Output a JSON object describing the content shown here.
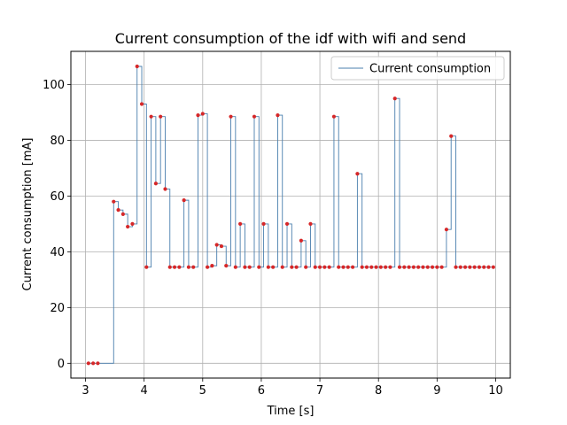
{
  "chart_data": {
    "type": "line",
    "title": "Current consumption of the idf with wifi and send",
    "xlabel": "Time [s]",
    "ylabel": "Current consumption [mA]",
    "xlim": [
      2.75,
      10.25
    ],
    "ylim": [
      -5.3,
      111.9
    ],
    "x_ticks": [
      3,
      4,
      5,
      6,
      7,
      8,
      9,
      10
    ],
    "y_ticks": [
      0,
      20,
      40,
      60,
      80,
      100
    ],
    "x_tick_labels": [
      "3",
      "4",
      "5",
      "6",
      "7",
      "8",
      "9",
      "10"
    ],
    "y_tick_labels": [
      "0",
      "20",
      "40",
      "60",
      "80",
      "100"
    ],
    "grid": true,
    "legend": {
      "position": "upper right",
      "entries": [
        "Current consumption"
      ]
    },
    "series": [
      {
        "name": "Current consumption",
        "line_style": "step",
        "line_color": "#4a7fae",
        "marker_color": "#d62728",
        "x": [
          3.05,
          3.13,
          3.21,
          3.48,
          3.56,
          3.64,
          3.72,
          3.8,
          3.88,
          3.96,
          4.04,
          4.12,
          4.2,
          4.28,
          4.36,
          4.44,
          4.52,
          4.6,
          4.68,
          4.76,
          4.84,
          4.92,
          5.0,
          5.08,
          5.16,
          5.24,
          5.32,
          5.4,
          5.48,
          5.56,
          5.64,
          5.72,
          5.8,
          5.88,
          5.96,
          6.04,
          6.12,
          6.2,
          6.28,
          6.36,
          6.44,
          6.52,
          6.6,
          6.68,
          6.76,
          6.84,
          6.92,
          7.0,
          7.08,
          7.16,
          7.24,
          7.32,
          7.4,
          7.48,
          7.56,
          7.64,
          7.72,
          7.8,
          7.88,
          7.96,
          8.04,
          8.12,
          8.2,
          8.28,
          8.36,
          8.44,
          8.52,
          8.6,
          8.68,
          8.76,
          8.84,
          8.92,
          9.0,
          9.08,
          9.16,
          9.24,
          9.32,
          9.4,
          9.48,
          9.56,
          9.64,
          9.72,
          9.8,
          9.88,
          9.96
        ],
        "y": [
          0,
          0,
          0,
          58,
          55,
          53.5,
          49,
          50,
          106.5,
          93,
          34.5,
          88.5,
          64.5,
          88.5,
          62.5,
          34.5,
          34.5,
          34.5,
          58.5,
          34.5,
          34.5,
          89,
          89.5,
          34.5,
          35,
          42.5,
          42,
          35,
          88.5,
          34.5,
          50,
          34.5,
          34.5,
          88.5,
          34.5,
          50,
          34.5,
          34.5,
          89,
          34.5,
          50,
          34.5,
          34.5,
          44,
          34.5,
          50,
          34.5,
          34.5,
          34.5,
          34.5,
          88.5,
          34.5,
          34.5,
          34.5,
          34.5,
          68,
          34.5,
          34.5,
          34.5,
          34.5,
          34.5,
          34.5,
          34.5,
          95,
          34.5,
          34.5,
          34.5,
          34.5,
          34.5,
          34.5,
          34.5,
          34.5,
          34.5,
          34.5,
          48,
          81.5,
          34.5,
          34.5,
          34.5,
          34.5,
          34.5,
          34.5,
          34.5,
          34.5,
          34.5
        ]
      }
    ]
  }
}
